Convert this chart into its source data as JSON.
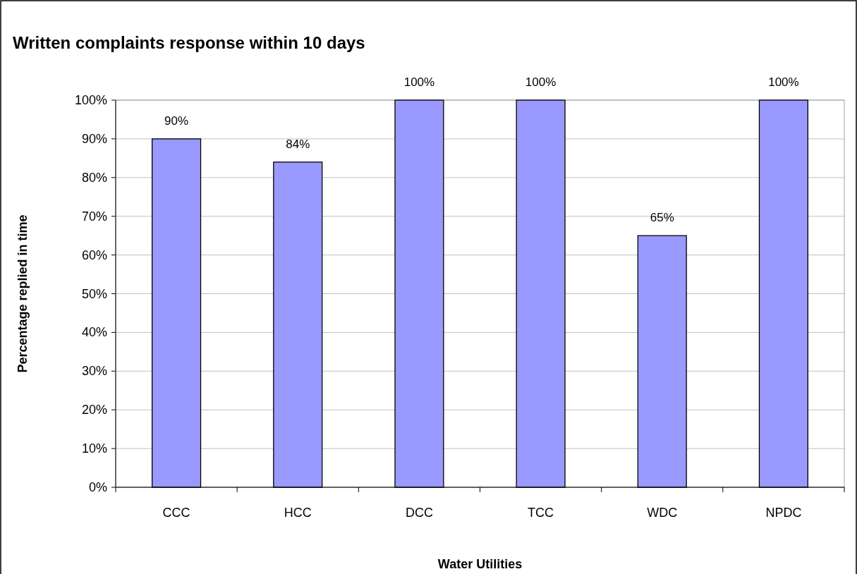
{
  "chart_data": {
    "type": "bar",
    "title": "Written complaints response within 10 days",
    "xlabel": "Water Utilities",
    "ylabel": "Percentage replied in time",
    "categories": [
      "CCC",
      "HCC",
      "DCC",
      "TCC",
      "WDC",
      "NPDC"
    ],
    "values": [
      90,
      84,
      100,
      100,
      65,
      100
    ],
    "color": "#9999ff",
    "value_labels": [
      "90%",
      "84%",
      "100%",
      "100%",
      "65%",
      "100%"
    ],
    "grid": "y",
    "ylim": [
      0,
      100
    ],
    "yticks": [
      {
        "value": 0,
        "label": "0%"
      },
      {
        "value": 10,
        "label": "10%"
      },
      {
        "value": 20,
        "label": "20%"
      },
      {
        "value": 30,
        "label": "30%"
      },
      {
        "value": 40,
        "label": "40%"
      },
      {
        "value": 50,
        "label": "50%"
      },
      {
        "value": 60,
        "label": "60%"
      },
      {
        "value": 70,
        "label": "70%"
      },
      {
        "value": 80,
        "label": "80%"
      },
      {
        "value": 90,
        "label": "90%"
      },
      {
        "value": 100,
        "label": "100%"
      }
    ]
  }
}
